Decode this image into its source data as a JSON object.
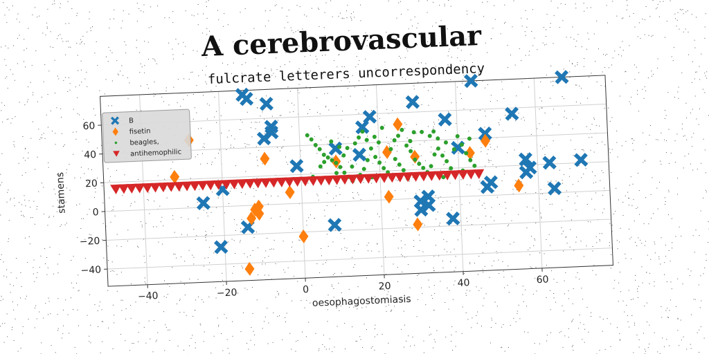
{
  "title": "A cerebrovascular",
  "subtitle": "fulcrate letterers uncorrespondency",
  "colors": {
    "blue": "#1f77b4",
    "orange": "#ff7f0e",
    "green": "#2ca02c",
    "red": "#d62728"
  },
  "chart_data": {
    "type": "scatter",
    "xlabel": "oesophagostomiasis",
    "ylabel": "stamens",
    "xlim": [
      -50,
      78
    ],
    "ylim": [
      -52,
      80
    ],
    "xticks": [
      "−40",
      "−20",
      "0",
      "20",
      "40",
      "60"
    ],
    "xtick_values": [
      -40,
      -20,
      0,
      20,
      40,
      60
    ],
    "yticks": [
      "−40",
      "−20",
      "0",
      "20",
      "40",
      "60"
    ],
    "ytick_values": [
      -40,
      -20,
      0,
      20,
      40,
      60
    ],
    "grid": true,
    "legend_position": "top-left",
    "series": [
      {
        "name": "B",
        "marker": "X",
        "color": "#1f77b4",
        "points": [
          [
            -14,
            77
          ],
          [
            -13,
            74
          ],
          [
            -8,
            70
          ],
          [
            -7,
            54
          ],
          [
            -7,
            50
          ],
          [
            -9,
            46
          ],
          [
            -25,
            3
          ],
          [
            -21,
            -28
          ],
          [
            -20,
            12
          ],
          [
            -14,
            -15
          ],
          [
            -1,
            26
          ],
          [
            8,
            -16
          ],
          [
            9,
            37
          ],
          [
            15,
            32
          ],
          [
            16,
            51
          ],
          [
            18,
            58
          ],
          [
            29,
            67
          ],
          [
            30,
            -2
          ],
          [
            30,
            -8
          ],
          [
            32,
            1
          ],
          [
            32,
            -5
          ],
          [
            37,
            54
          ],
          [
            38,
            -15
          ],
          [
            40,
            34
          ],
          [
            44,
            80
          ],
          [
            47,
            43
          ],
          [
            47,
            6
          ],
          [
            48,
            9
          ],
          [
            54,
            56
          ],
          [
            57,
            24
          ],
          [
            58,
            18
          ],
          [
            57,
            15
          ],
          [
            63,
            21
          ],
          [
            64,
            3
          ],
          [
            67,
            80
          ],
          [
            71,
            22
          ]
        ]
      },
      {
        "name": "fisetin",
        "marker": "diamond",
        "color": "#ff7f0e",
        "points": [
          [
            -28,
            47
          ],
          [
            -32,
            22
          ],
          [
            -9,
            32
          ],
          [
            -12,
            -3
          ],
          [
            -11,
            -6
          ],
          [
            -11,
            -1
          ],
          [
            -13,
            -9
          ],
          [
            -14,
            -44
          ],
          [
            -3,
            8
          ],
          [
            0,
            -23
          ],
          [
            9,
            28
          ],
          [
            22,
            33
          ],
          [
            22,
            2
          ],
          [
            25,
            52
          ],
          [
            29,
            29
          ],
          [
            29,
            -18
          ],
          [
            43,
            30
          ],
          [
            47,
            38
          ],
          [
            55,
            6
          ]
        ]
      },
      {
        "name": "beagles,",
        "marker": "circle",
        "color": "#2ca02c",
        "points": [
          [
            2,
            47
          ],
          [
            3,
            44
          ],
          [
            4,
            40
          ],
          [
            5,
            37
          ],
          [
            6,
            33
          ],
          [
            7,
            31
          ],
          [
            8,
            29
          ],
          [
            9,
            27
          ],
          [
            10,
            24
          ],
          [
            11,
            20
          ],
          [
            12,
            17
          ],
          [
            13,
            14
          ],
          [
            14,
            40
          ],
          [
            15,
            44
          ],
          [
            16,
            48
          ],
          [
            17,
            42
          ],
          [
            18,
            36
          ],
          [
            19,
            30
          ],
          [
            20,
            26
          ],
          [
            21,
            22
          ],
          [
            22,
            19
          ],
          [
            23,
            16
          ],
          [
            24,
            41
          ],
          [
            25,
            44
          ],
          [
            26,
            48
          ],
          [
            27,
            37
          ],
          [
            28,
            33
          ],
          [
            29,
            27
          ],
          [
            30,
            24
          ],
          [
            31,
            21
          ],
          [
            32,
            18
          ],
          [
            33,
            43
          ],
          [
            34,
            46
          ],
          [
            35,
            34
          ],
          [
            36,
            29
          ],
          [
            37,
            25
          ],
          [
            38,
            20
          ],
          [
            39,
            16
          ],
          [
            40,
            42
          ],
          [
            41,
            36
          ],
          [
            42,
            30
          ],
          [
            43,
            25
          ],
          [
            44,
            21
          ],
          [
            45,
            17
          ],
          [
            3,
            18
          ],
          [
            5,
            25
          ],
          [
            7,
            15
          ],
          [
            9,
            20
          ],
          [
            11,
            32
          ],
          [
            13,
            24
          ],
          [
            15,
            18
          ],
          [
            17,
            28
          ],
          [
            19,
            44
          ],
          [
            21,
            50
          ],
          [
            23,
            35
          ],
          [
            26,
            20
          ],
          [
            28,
            40
          ],
          [
            31,
            46
          ],
          [
            34,
            30
          ],
          [
            36,
            14
          ],
          [
            39,
            33
          ],
          [
            41,
            18
          ],
          [
            43,
            40
          ],
          [
            12,
            37
          ],
          [
            16,
            22
          ],
          [
            24,
            28
          ],
          [
            27,
            14
          ],
          [
            33,
            22
          ],
          [
            6,
            28
          ],
          [
            10,
            38
          ],
          [
            18,
            16
          ],
          [
            29,
            46
          ],
          [
            37,
            38
          ],
          [
            8,
            42
          ],
          [
            20,
            40
          ],
          [
            25,
            24
          ],
          [
            35,
            41
          ]
        ]
      },
      {
        "name": "antihemophilic",
        "marker": "triangle_down",
        "color": "#d62728",
        "points": [
          [
            -47,
            15
          ],
          [
            -45,
            15
          ],
          [
            -43,
            15
          ],
          [
            -41,
            15
          ],
          [
            -39,
            15
          ],
          [
            -37,
            15
          ],
          [
            -35,
            15
          ],
          [
            -33,
            15
          ],
          [
            -31,
            15
          ],
          [
            -29,
            15
          ],
          [
            -27,
            15
          ],
          [
            -25,
            15
          ],
          [
            -23,
            15
          ],
          [
            -21,
            15
          ],
          [
            -19,
            15
          ],
          [
            -17,
            15
          ],
          [
            -15,
            15
          ],
          [
            -13,
            15
          ],
          [
            -11,
            15
          ],
          [
            -9,
            15
          ],
          [
            -7,
            15
          ],
          [
            -5,
            15
          ],
          [
            -3,
            15
          ],
          [
            -1,
            15
          ],
          [
            1,
            15
          ],
          [
            3,
            15
          ],
          [
            5,
            15
          ],
          [
            7,
            15
          ],
          [
            9,
            15
          ],
          [
            11,
            15
          ],
          [
            13,
            15
          ],
          [
            15,
            15
          ],
          [
            17,
            15
          ],
          [
            19,
            15
          ],
          [
            21,
            15
          ],
          [
            23,
            15
          ],
          [
            25,
            15
          ],
          [
            27,
            15
          ],
          [
            29,
            15
          ],
          [
            31,
            15
          ],
          [
            33,
            15
          ],
          [
            35,
            15
          ],
          [
            37,
            15
          ],
          [
            39,
            15
          ],
          [
            41,
            15
          ],
          [
            43,
            15
          ],
          [
            45,
            15
          ]
        ]
      }
    ]
  }
}
